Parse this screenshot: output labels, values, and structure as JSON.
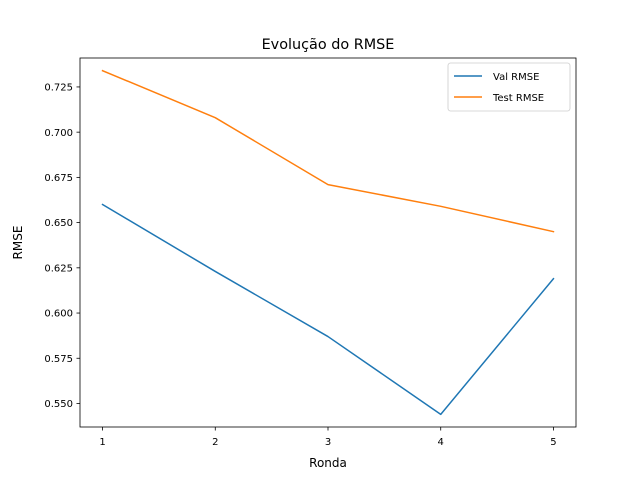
{
  "chart_data": {
    "type": "line",
    "title": "Evolução do RMSE",
    "xlabel": "Ronda",
    "ylabel": "RMSE",
    "x": [
      1,
      2,
      3,
      4,
      5
    ],
    "xlim": [
      0.8,
      5.2
    ],
    "ylim": [
      0.537,
      0.741
    ],
    "xticks": [
      1,
      2,
      3,
      4,
      5
    ],
    "yticks": [
      0.55,
      0.575,
      0.6,
      0.625,
      0.65,
      0.675,
      0.7,
      0.725
    ],
    "ytick_labels": [
      "0.550",
      "0.575",
      "0.600",
      "0.625",
      "0.650",
      "0.675",
      "0.700",
      "0.725"
    ],
    "grid": false,
    "legend_position": "top-right",
    "series": [
      {
        "name": "Val RMSE",
        "color": "#1f77b4",
        "values": [
          0.66,
          0.623,
          0.587,
          0.544,
          0.619
        ]
      },
      {
        "name": "Test RMSE",
        "color": "#ff7f0e",
        "values": [
          0.734,
          0.708,
          0.671,
          0.659,
          0.645
        ]
      }
    ]
  }
}
